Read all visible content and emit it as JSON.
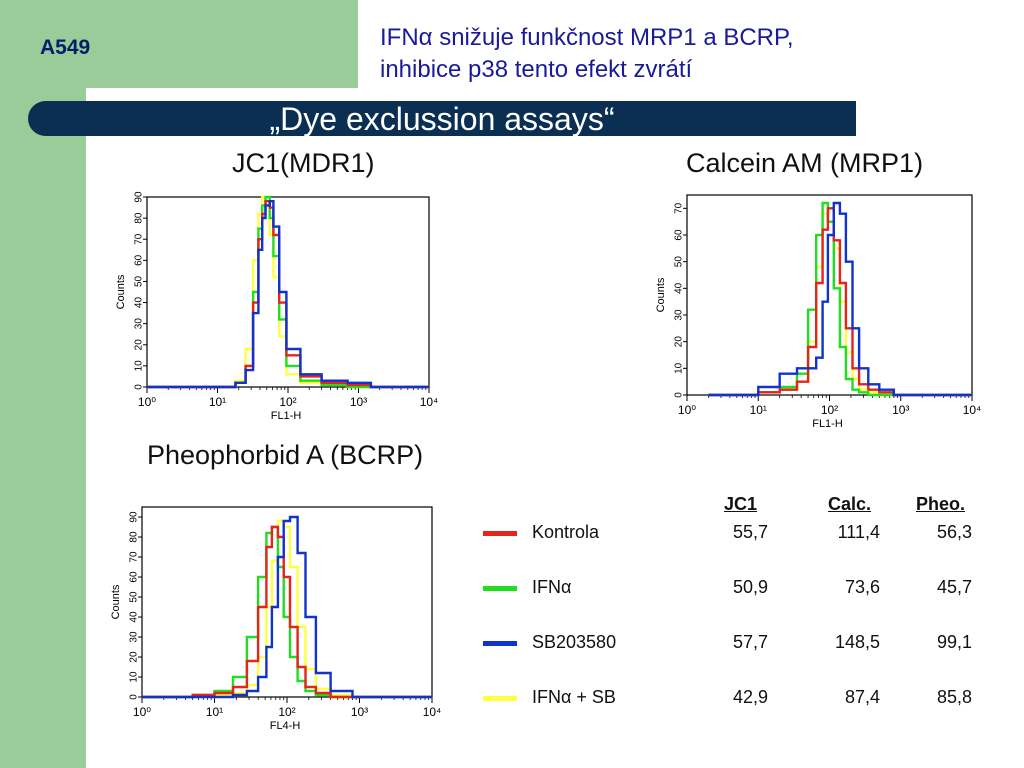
{
  "header": {
    "cell_line": "A549",
    "subtitle_line1": "IFNα snižuje funkčnost MRP1 a BCRP,",
    "subtitle_line2": "inhibice p38 tento efekt zvrátí",
    "banner": "„Dye exclussion assays“"
  },
  "colors": {
    "sidebar": "#99cc99",
    "banner": "#0a2f52",
    "Kontrola": "#e2261c",
    "IFNα": "#22dd22",
    "SB203580": "#1133cc",
    "IFNα + SB": "#ffff44"
  },
  "chart_data": [
    {
      "id": "jc1",
      "type": "line",
      "panel_title": "JC1(MDR1)",
      "xlabel": "FL1-H",
      "ylabel": "Counts",
      "xscale": "log",
      "xlim": [
        1,
        10000
      ],
      "ylim": [
        0,
        90
      ],
      "x_ticks": [
        "10⁰",
        "10¹",
        "10²",
        "10³",
        "10⁴"
      ],
      "y_ticks": [
        "0",
        "10",
        "20",
        "30",
        "40",
        "50",
        "60",
        "70",
        "80",
        "90"
      ],
      "series": [
        {
          "name": "Kontrola",
          "color": "#e2261c",
          "x": [
            1,
            10,
            18,
            25,
            32,
            38,
            43,
            48,
            55,
            62,
            75,
            95,
            150,
            300,
            700,
            1500
          ],
          "y": [
            0,
            0,
            2,
            10,
            40,
            70,
            82,
            88,
            85,
            72,
            40,
            15,
            5,
            2,
            1,
            0
          ]
        },
        {
          "name": "IFNα",
          "color": "#22dd22",
          "x": [
            1,
            10,
            18,
            25,
            32,
            38,
            43,
            48,
            55,
            62,
            75,
            95,
            150,
            300,
            700,
            1500
          ],
          "y": [
            0,
            0,
            2,
            10,
            45,
            75,
            86,
            90,
            80,
            62,
            32,
            10,
            3,
            1,
            0,
            0
          ]
        },
        {
          "name": "SB203580",
          "color": "#1133cc",
          "x": [
            1,
            10,
            18,
            25,
            32,
            38,
            43,
            48,
            55,
            62,
            75,
            95,
            150,
            300,
            700,
            1500
          ],
          "y": [
            0,
            0,
            2,
            8,
            35,
            65,
            80,
            86,
            88,
            76,
            45,
            18,
            6,
            3,
            2,
            0
          ]
        },
        {
          "name": "IFNα + SB",
          "color": "#ffff44",
          "x": [
            1,
            10,
            18,
            25,
            32,
            38,
            43,
            48,
            55,
            62,
            75,
            95,
            150,
            300,
            700,
            1500
          ],
          "y": [
            0,
            0,
            3,
            18,
            60,
            82,
            90,
            86,
            72,
            52,
            24,
            6,
            2,
            1,
            0,
            0
          ]
        }
      ]
    },
    {
      "id": "calcein",
      "type": "line",
      "panel_title": "Calcein AM (MRP1)",
      "xlabel": "FL1-H",
      "ylabel": "Counts",
      "xscale": "log",
      "xlim": [
        1,
        10000
      ],
      "ylim": [
        0,
        75
      ],
      "x_ticks": [
        "10⁰",
        "10¹",
        "10²",
        "10³",
        "10⁴"
      ],
      "y_ticks": [
        "0",
        "10",
        "20",
        "30",
        "40",
        "50",
        "60",
        "70"
      ],
      "series": [
        {
          "name": "Kontrola",
          "color": "#e2261c",
          "x": [
            2,
            10,
            20,
            35,
            50,
            65,
            80,
            95,
            115,
            140,
            170,
            210,
            260,
            350,
            500,
            800
          ],
          "y": [
            0,
            1,
            2,
            5,
            18,
            42,
            62,
            70,
            58,
            42,
            25,
            10,
            4,
            2,
            1,
            0
          ]
        },
        {
          "name": "IFNα",
          "color": "#22dd22",
          "x": [
            2,
            10,
            20,
            35,
            50,
            65,
            80,
            95,
            115,
            140,
            170,
            210,
            260,
            350,
            500,
            800
          ],
          "y": [
            0,
            1,
            3,
            8,
            32,
            60,
            72,
            65,
            40,
            18,
            6,
            2,
            1,
            0,
            0,
            0
          ]
        },
        {
          "name": "SB203580",
          "color": "#1133cc",
          "x": [
            2,
            10,
            20,
            35,
            50,
            65,
            80,
            95,
            115,
            140,
            170,
            210,
            260,
            350,
            500,
            800
          ],
          "y": [
            0,
            3,
            8,
            10,
            10,
            14,
            35,
            60,
            72,
            68,
            50,
            25,
            10,
            4,
            2,
            0
          ]
        },
        {
          "name": "IFNα + SB",
          "color": "#ffff44",
          "x": [
            2,
            10,
            20,
            35,
            50,
            65,
            80,
            95,
            115,
            140,
            170,
            210,
            260,
            350,
            500,
            800
          ],
          "y": [
            0,
            1,
            2,
            5,
            20,
            48,
            68,
            70,
            55,
            35,
            16,
            6,
            2,
            1,
            0,
            0
          ]
        }
      ]
    },
    {
      "id": "pheo",
      "type": "line",
      "panel_title": "Pheophorbid A (BCRP)",
      "xlabel": "FL4-H",
      "ylabel": "Counts",
      "xscale": "log",
      "xlim": [
        1,
        10000
      ],
      "ylim": [
        0,
        95
      ],
      "x_ticks": [
        "10⁰",
        "10¹",
        "10²",
        "10³",
        "10⁴"
      ],
      "y_ticks": [
        "0",
        "10",
        "20",
        "30",
        "40",
        "50",
        "60",
        "70",
        "80",
        "90"
      ],
      "series": [
        {
          "name": "Kontrola",
          "color": "#e2261c",
          "x": [
            1,
            5,
            10,
            18,
            28,
            40,
            52,
            62,
            75,
            90,
            110,
            140,
            180,
            250,
            400,
            800
          ],
          "y": [
            0,
            1,
            2,
            5,
            18,
            45,
            75,
            85,
            80,
            60,
            35,
            15,
            5,
            2,
            0,
            0
          ]
        },
        {
          "name": "IFNα",
          "color": "#22dd22",
          "x": [
            1,
            5,
            10,
            18,
            28,
            40,
            52,
            62,
            75,
            90,
            110,
            140,
            180,
            250,
            400,
            800
          ],
          "y": [
            0,
            1,
            3,
            10,
            30,
            60,
            82,
            85,
            65,
            40,
            20,
            8,
            3,
            1,
            0,
            0
          ]
        },
        {
          "name": "SB203580",
          "color": "#1133cc",
          "x": [
            1,
            5,
            10,
            18,
            28,
            40,
            52,
            62,
            75,
            90,
            110,
            140,
            180,
            250,
            400,
            800
          ],
          "y": [
            0,
            0,
            0,
            1,
            3,
            10,
            25,
            45,
            70,
            88,
            90,
            72,
            40,
            12,
            3,
            0
          ]
        },
        {
          "name": "IFNα + SB",
          "color": "#ffff44",
          "x": [
            1,
            5,
            10,
            18,
            28,
            40,
            52,
            62,
            75,
            90,
            110,
            140,
            180,
            250,
            400,
            800
          ],
          "y": [
            0,
            0,
            1,
            2,
            6,
            20,
            45,
            68,
            88,
            85,
            65,
            35,
            14,
            4,
            1,
            0
          ]
        }
      ]
    }
  ],
  "legend": {
    "columns": [
      "JC1",
      "Calc.",
      "Pheo."
    ],
    "rows": [
      {
        "label": "Kontrola",
        "color": "#e2261c",
        "jc1": "55,7",
        "calc": "111,4",
        "pheo": "56,3"
      },
      {
        "label": "IFNα",
        "color": "#22dd22",
        "jc1": "50,9",
        "calc": "73,6",
        "pheo": "45,7"
      },
      {
        "label": "SB203580",
        "color": "#1133cc",
        "jc1": "57,7",
        "calc": "148,5",
        "pheo": "99,1"
      },
      {
        "label": "IFNα + SB",
        "color": "#ffff44",
        "jc1": "42,9",
        "calc": "87,4",
        "pheo": "85,8"
      }
    ]
  }
}
